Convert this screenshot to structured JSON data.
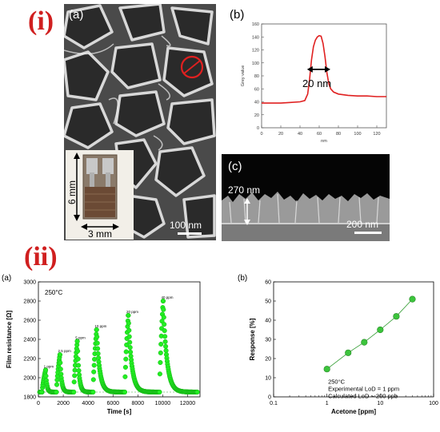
{
  "figure_labels": {
    "part_i": "(i)",
    "part_ii": "(ii)"
  },
  "panels_i": {
    "a": {
      "label": "(a)",
      "inset_height": "6 mm",
      "inset_width": "3 mm",
      "scale_bar": "100 nm"
    },
    "b": {
      "label": "(b)",
      "annotation": "20 nm"
    },
    "c": {
      "label": "(c)",
      "thickness": "270 nm",
      "scale_bar": "200 nm"
    }
  },
  "panels_ii": {
    "a": {
      "label": "(a)",
      "annotation_temp": "250°C",
      "gas_labels": [
        "1 ppm",
        "2.5 ppm",
        "5 ppm",
        "10 ppm",
        "20 ppm",
        "40 ppm"
      ]
    },
    "b": {
      "label": "(b)",
      "notes": [
        "250°C",
        "Experimental LoD = 1 ppm",
        "Calculated LoD ~ 200 ppb"
      ]
    }
  },
  "chart_data": [
    {
      "id": "grey-profile",
      "type": "line",
      "title": "",
      "xlabel": "nm",
      "ylabel": "Grey value",
      "xlim": [
        0,
        130
      ],
      "ylim": [
        0,
        160
      ],
      "xticks": [
        0,
        20,
        40,
        60,
        80,
        100,
        120
      ],
      "yticks": [
        0,
        20,
        40,
        60,
        80,
        100,
        120,
        140,
        160
      ],
      "color": "#e02020",
      "x": [
        0,
        10,
        20,
        30,
        40,
        45,
        48,
        50,
        52,
        54,
        56,
        58,
        60,
        62,
        64,
        66,
        68,
        70,
        72,
        75,
        80,
        90,
        100,
        110,
        120,
        130
      ],
      "y": [
        38,
        38,
        38,
        39,
        40,
        42,
        52,
        75,
        105,
        125,
        135,
        140,
        142,
        141,
        130,
        110,
        85,
        68,
        60,
        55,
        52,
        50,
        49,
        49,
        48,
        48
      ]
    },
    {
      "id": "film-resistance",
      "type": "scatter",
      "title": "",
      "xlabel": "Time [s]",
      "ylabel": "Film resistance [Ω]",
      "xlim": [
        0,
        13000
      ],
      "ylim": [
        1800,
        3000
      ],
      "xticks": [
        0,
        2000,
        4000,
        6000,
        8000,
        10000,
        12000
      ],
      "yticks": [
        1800,
        2000,
        2200,
        2400,
        2600,
        2800,
        3000
      ],
      "baseline": 1850,
      "color": "#22ee22",
      "pulses": [
        {
          "start": 300,
          "peak": 2080,
          "label": "1 ppm"
        },
        {
          "start": 1450,
          "peak": 2240,
          "label": "2.5 ppm"
        },
        {
          "start": 2850,
          "peak": 2380,
          "label": "5 ppm"
        },
        {
          "start": 4400,
          "peak": 2500,
          "label": "10 ppm"
        },
        {
          "start": 6950,
          "peak": 2650,
          "label": "20 ppm"
        },
        {
          "start": 9750,
          "peak": 2800,
          "label": "40 ppm"
        }
      ]
    },
    {
      "id": "response-vs-acetone",
      "type": "scatter",
      "title": "",
      "xlabel": "Acetone [ppm]",
      "ylabel": "Response [%]",
      "xscale": "log",
      "xlim": [
        0.1,
        100
      ],
      "ylim": [
        0,
        60
      ],
      "xticks": [
        0.1,
        1,
        10,
        100
      ],
      "xtick_labels": [
        "0.1",
        "1",
        "10",
        "100"
      ],
      "yticks": [
        0,
        10,
        20,
        30,
        40,
        50,
        60
      ],
      "color": "#3cc43c",
      "x": [
        1,
        2.5,
        5,
        10,
        20,
        40
      ],
      "y": [
        14.5,
        23,
        28.5,
        35,
        42,
        51
      ]
    }
  ]
}
